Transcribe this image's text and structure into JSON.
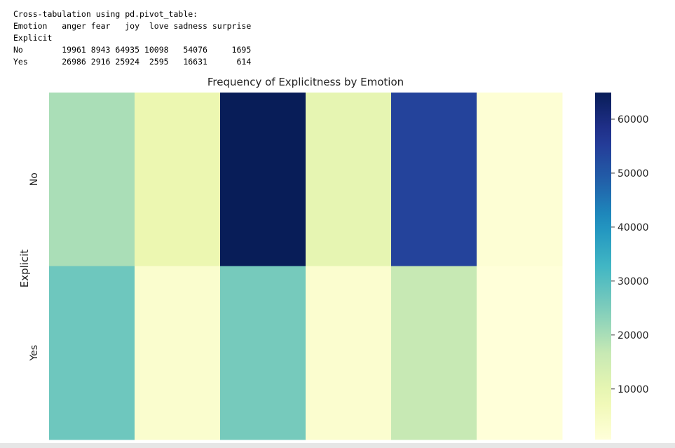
{
  "output": {
    "caption": "Cross-tabulation using pd.pivot_table:",
    "header_label": "Emotion",
    "index_name": "Explicit",
    "columns": [
      "anger",
      "fear",
      "joy",
      "love",
      "sadness",
      "surprise"
    ],
    "rows": [
      {
        "label": "No",
        "values": [
          "19961",
          "8943",
          "64935",
          "10098",
          "54076",
          "1695"
        ]
      },
      {
        "label": "Yes",
        "values": [
          "26986",
          "2916",
          "25924",
          "2595",
          "16631",
          "614"
        ]
      }
    ]
  },
  "chart_data": {
    "type": "heatmap",
    "title": "Frequency of Explicitness by Emotion",
    "ylabel": "Explicit",
    "xlabel": "",
    "rows": [
      "No",
      "Yes"
    ],
    "columns": [
      "anger",
      "fear",
      "joy",
      "love",
      "sadness",
      "surprise"
    ],
    "values": [
      [
        19961,
        8943,
        64935,
        10098,
        54076,
        1695
      ],
      [
        26986,
        2916,
        25924,
        2595,
        16631,
        614
      ]
    ],
    "colormap": "YlGnBu",
    "colorbar": {
      "range": [
        614,
        64935
      ],
      "ticks": [
        10000,
        20000,
        30000,
        40000,
        50000,
        60000
      ],
      "tick_labels": [
        "10000",
        "20000",
        "30000",
        "40000",
        "50000",
        "60000"
      ]
    },
    "x_tick_labels_visible": false
  }
}
